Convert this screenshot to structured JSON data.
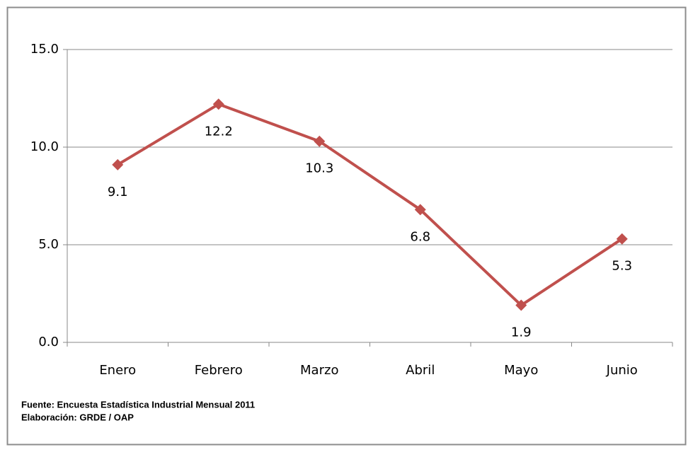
{
  "chart_data": {
    "type": "line",
    "categories": [
      "Enero",
      "Febrero",
      "Marzo",
      "Abril",
      "Mayo",
      "Junio"
    ],
    "values": [
      9.1,
      12.2,
      10.3,
      6.8,
      1.9,
      5.3
    ],
    "color": "#c0504d",
    "ylim": [
      0,
      15
    ],
    "yticks": [
      {
        "value": 0,
        "label": "0.0"
      },
      {
        "value": 5,
        "label": "5.0"
      },
      {
        "value": 10,
        "label": "10.0"
      },
      {
        "value": 15,
        "label": "15.0"
      }
    ],
    "grid": true,
    "notes": [
      "Fuente: Encuesta Estadística Industrial Mensual 2011",
      "Elaboración: GRDE / OAP"
    ]
  }
}
